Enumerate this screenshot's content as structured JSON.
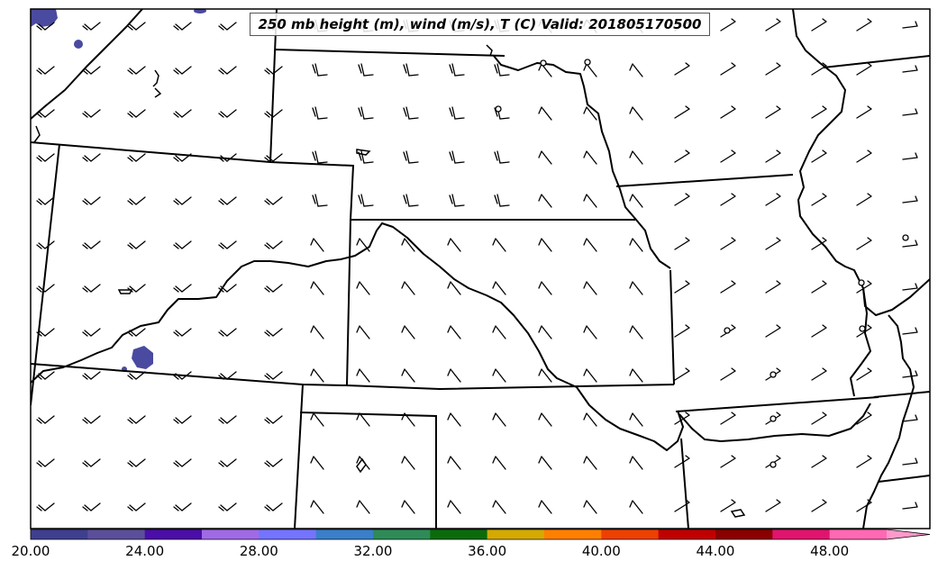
{
  "title": "250 mb height (m), wind (m/s), T (C) Valid: 201805170500",
  "colorbar": {
    "ticks": [
      "20.00",
      "24.00",
      "28.00",
      "32.00",
      "36.00",
      "40.00",
      "44.00",
      "48.00"
    ],
    "min": 20,
    "max": 52,
    "step": 2,
    "extend": "max",
    "colors": [
      "#3f3f8f",
      "#5b4f9a",
      "#4b0ea8",
      "#a06ae6",
      "#7474ff",
      "#3a7fc9",
      "#2e8b57",
      "#0b6b0b",
      "#d4aa00",
      "#ff8000",
      "#ee4000",
      "#c00000",
      "#8b0000",
      "#e0146e",
      "#ff69b4",
      "#ff99cc"
    ]
  }
}
